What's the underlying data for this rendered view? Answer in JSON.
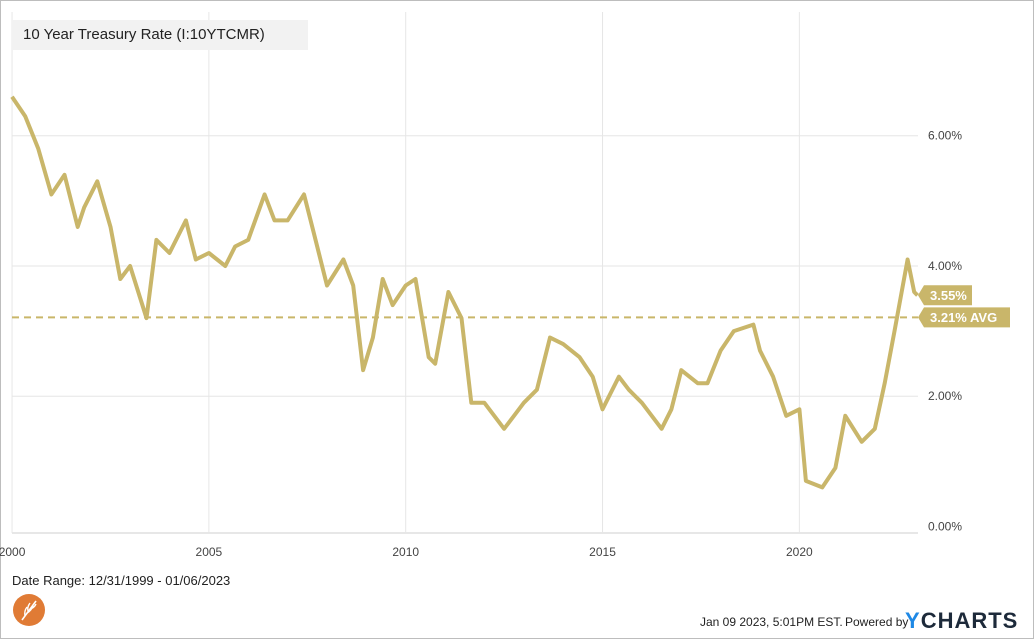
{
  "legend": {
    "label": "10 Year Treasury Rate (I:10YTCMR)"
  },
  "footer": {
    "date_range": "Date Range: 12/31/1999 - 01/06/2023",
    "timestamp": "Jan 09 2023, 5:01PM EST.",
    "powered_by": "Powered by",
    "brand_y": "Y",
    "brand_rest": "CHARTS"
  },
  "colors": {
    "line": "#c9b66a",
    "grid": "#e6e6e6",
    "label_text": "#ffffff"
  },
  "chart_data": {
    "type": "line",
    "x_ticks": [
      {
        "year": 2000,
        "label": "2000"
      },
      {
        "year": 2005,
        "label": "2005"
      },
      {
        "year": 2010,
        "label": "2010"
      },
      {
        "year": 2015,
        "label": "2015"
      },
      {
        "year": 2020,
        "label": "2020"
      }
    ],
    "y_ticks": [
      {
        "value": 0,
        "label": "0.00%"
      },
      {
        "value": 2,
        "label": "2.00%"
      },
      {
        "value": 4,
        "label": "4.00%"
      },
      {
        "value": 6,
        "label": "6.00%"
      }
    ],
    "xlim": [
      "1999-12-31",
      "2023-01-06"
    ],
    "ylim": [
      -0.1,
      7.9
    ],
    "last_value": 3.55,
    "last_label": "3.55%",
    "average": 3.21,
    "average_label": "3.21% AVG",
    "series": [
      {
        "x": [
          "2000-01",
          "2000-05",
          "2000-09",
          "2001-01",
          "2001-05",
          "2001-09",
          "2001-11",
          "2002-03",
          "2002-07",
          "2002-10",
          "2003-01",
          "2003-06",
          "2003-09",
          "2004-01",
          "2004-06",
          "2004-09",
          "2005-01",
          "2005-06",
          "2005-09",
          "2006-01",
          "2006-06",
          "2006-09",
          "2007-01",
          "2007-06",
          "2007-09",
          "2008-01",
          "2008-06",
          "2008-09",
          "2008-12",
          "2009-03",
          "2009-06",
          "2009-09",
          "2010-01",
          "2010-04",
          "2010-08",
          "2010-10",
          "2011-02",
          "2011-06",
          "2011-09",
          "2012-01",
          "2012-07",
          "2012-10",
          "2013-01",
          "2013-05",
          "2013-09",
          "2014-01",
          "2014-06",
          "2014-10",
          "2015-01",
          "2015-06",
          "2015-09",
          "2016-01",
          "2016-07",
          "2016-10",
          "2017-01",
          "2017-06",
          "2017-09",
          "2018-01",
          "2018-05",
          "2018-11",
          "2019-01",
          "2019-05",
          "2019-09",
          "2020-01",
          "2020-03",
          "2020-08",
          "2020-12",
          "2021-03",
          "2021-08",
          "2021-12",
          "2022-03",
          "2022-06",
          "2022-10",
          "2022-12",
          "2023-01"
        ],
        "y": [
          6.6,
          6.3,
          5.8,
          5.1,
          5.4,
          4.6,
          4.9,
          5.3,
          4.6,
          3.8,
          4.0,
          3.2,
          4.4,
          4.2,
          4.7,
          4.1,
          4.2,
          4.0,
          4.3,
          4.4,
          5.1,
          4.7,
          4.7,
          5.1,
          4.5,
          3.7,
          4.1,
          3.7,
          2.4,
          2.9,
          3.8,
          3.4,
          3.7,
          3.8,
          2.6,
          2.5,
          3.6,
          3.2,
          1.9,
          1.9,
          1.5,
          1.7,
          1.9,
          2.1,
          2.9,
          2.8,
          2.6,
          2.3,
          1.8,
          2.3,
          2.1,
          1.9,
          1.5,
          1.8,
          2.4,
          2.2,
          2.2,
          2.7,
          3.0,
          3.1,
          2.7,
          2.3,
          1.7,
          1.8,
          0.7,
          0.6,
          0.9,
          1.7,
          1.3,
          1.5,
          2.2,
          3.0,
          4.1,
          3.6,
          3.55
        ]
      }
    ]
  }
}
